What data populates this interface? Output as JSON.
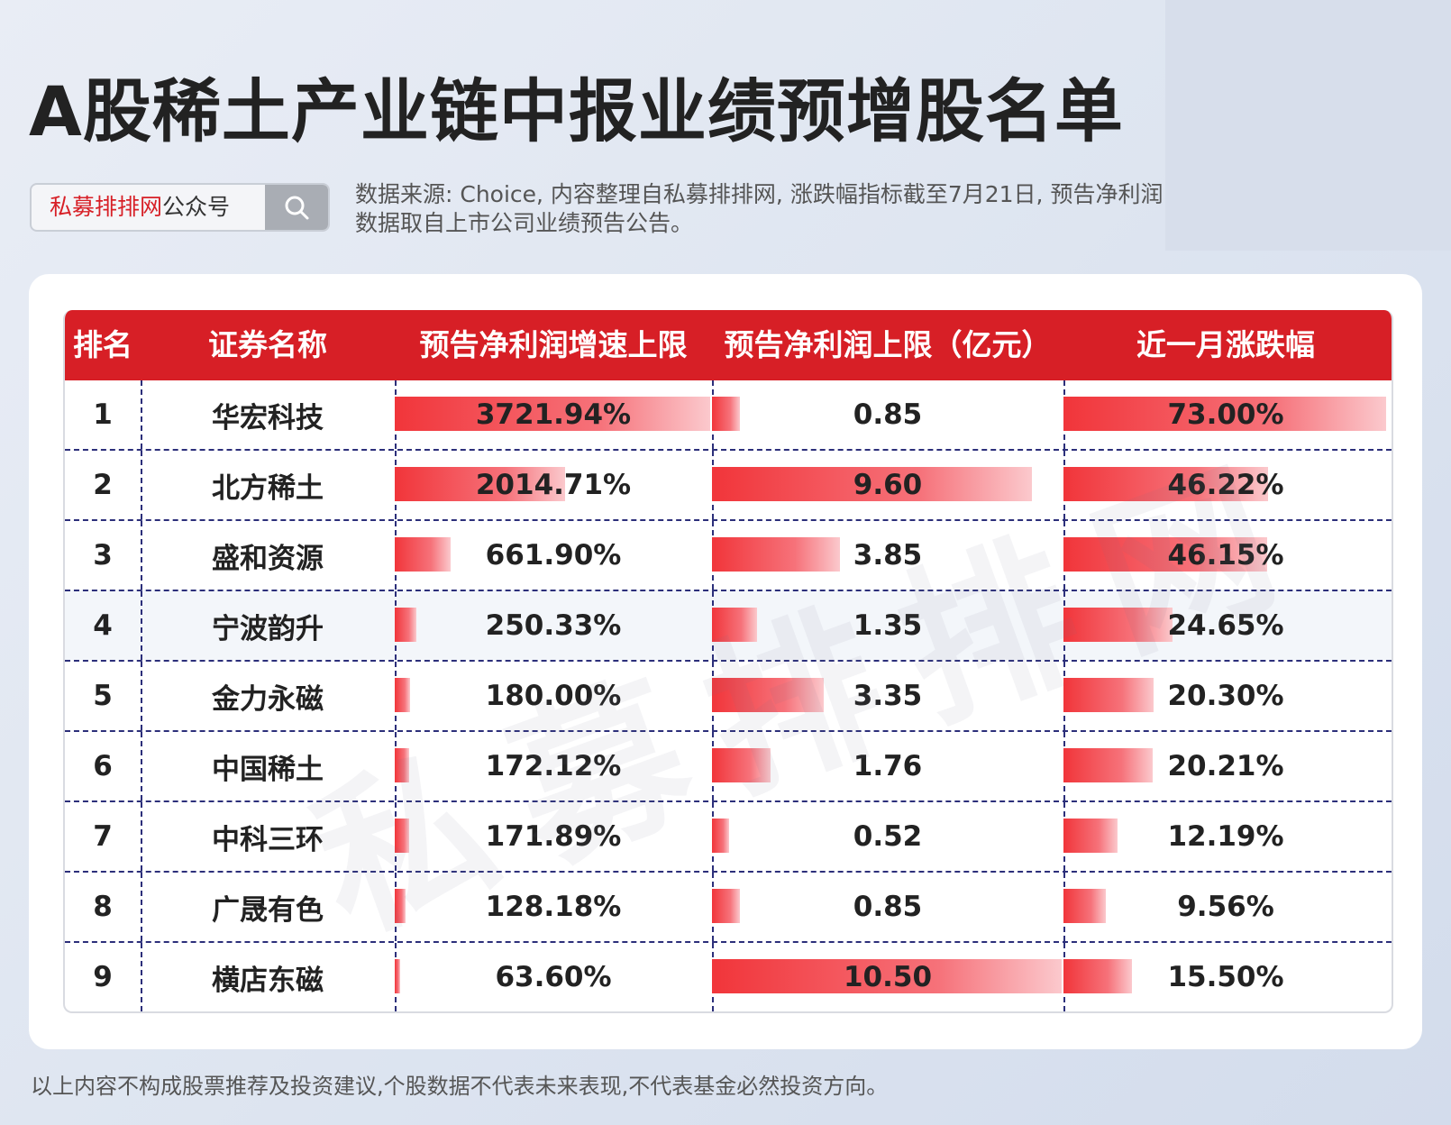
{
  "title": "A股稀土产业链中报业绩预增股名单",
  "search": {
    "brand": "私募排排网",
    "suffix": "公众号"
  },
  "source_note": "数据来源: Choice, 内容整理自私募排排网, 涨跌幅指标截至7月21日, 预告净利润数据取自上市公司业绩预告公告。",
  "watermark": "私募排排网",
  "footer_note": "以上内容不构成股票推荐及投资建议,个股数据不代表未来表现,不代表基金必然投资方向。",
  "colors": {
    "header": "#d71f26",
    "bar_start": "#f1353a",
    "bar_end": "#fbc9cd"
  },
  "chart_data": {
    "type": "table",
    "columns": [
      "排名",
      "证券名称",
      "预告净利润增速上限",
      "预告净利润上限（亿元）",
      "近一月涨跌幅"
    ],
    "rows": [
      {
        "rank": "1",
        "name": "华宏科技",
        "growth": 3721.94,
        "growth_label": "3721.94%",
        "profit": 0.85,
        "profit_label": "0.85",
        "change": 73.0,
        "change_label": "73.00%"
      },
      {
        "rank": "2",
        "name": "北方稀土",
        "growth": 2014.71,
        "growth_label": "2014.71%",
        "profit": 9.6,
        "profit_label": "9.60",
        "change": 46.22,
        "change_label": "46.22%"
      },
      {
        "rank": "3",
        "name": "盛和资源",
        "growth": 661.9,
        "growth_label": "661.90%",
        "profit": 3.85,
        "profit_label": "3.85",
        "change": 46.15,
        "change_label": "46.15%"
      },
      {
        "rank": "4",
        "name": "宁波韵升",
        "growth": 250.33,
        "growth_label": "250.33%",
        "profit": 1.35,
        "profit_label": "1.35",
        "change": 24.65,
        "change_label": "24.65%"
      },
      {
        "rank": "5",
        "name": "金力永磁",
        "growth": 180.0,
        "growth_label": "180.00%",
        "profit": 3.35,
        "profit_label": "3.35",
        "change": 20.3,
        "change_label": "20.30%"
      },
      {
        "rank": "6",
        "name": "中国稀土",
        "growth": 172.12,
        "growth_label": "172.12%",
        "profit": 1.76,
        "profit_label": "1.76",
        "change": 20.21,
        "change_label": "20.21%"
      },
      {
        "rank": "7",
        "name": "中科三环",
        "growth": 171.89,
        "growth_label": "171.89%",
        "profit": 0.52,
        "profit_label": "0.52",
        "change": 12.19,
        "change_label": "12.19%"
      },
      {
        "rank": "8",
        "name": "广晟有色",
        "growth": 128.18,
        "growth_label": "128.18%",
        "profit": 0.85,
        "profit_label": "0.85",
        "change": 9.56,
        "change_label": "9.56%"
      },
      {
        "rank": "9",
        "name": "横店东磁",
        "growth": 63.6,
        "growth_label": "63.60%",
        "profit": 10.5,
        "profit_label": "10.50",
        "change": 15.5,
        "change_label": "15.50%"
      }
    ]
  }
}
